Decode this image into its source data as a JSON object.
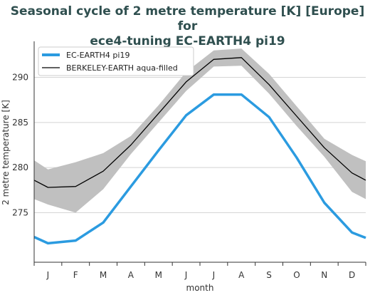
{
  "chart_data": {
    "type": "line",
    "title_lines": [
      "Seasonal cycle of 2 metre temperature [K] [Europe] for",
      "ece4-tuning EC-EARTH4 pi19"
    ],
    "xlabel": "month",
    "ylabel": "2 metre temperature [K]",
    "categories": [
      "J",
      "F",
      "M",
      "A",
      "M",
      "J",
      "J",
      "A",
      "S",
      "O",
      "N",
      "D"
    ],
    "ylim": [
      269.5,
      294.0
    ],
    "yticks": [
      275,
      280,
      285,
      290
    ],
    "grid": "horizontal",
    "legend_position": "top-left",
    "series": [
      {
        "name": "EC-EARTH4 pi19",
        "color": "#2b9be0",
        "x": [
          0.5,
          1,
          2,
          3,
          4,
          5,
          6,
          7,
          8,
          9,
          10,
          11,
          12,
          12.5
        ],
        "values": [
          272.3,
          271.6,
          271.9,
          273.9,
          277.9,
          281.9,
          285.8,
          288.1,
          288.1,
          285.6,
          281.1,
          276.1,
          272.8,
          272.2
        ]
      },
      {
        "name": "BERKELEY-EARTH aqua-filled",
        "color": "#000000",
        "x": [
          0.5,
          1,
          2,
          3,
          4,
          5,
          6,
          7,
          8,
          9,
          10,
          11,
          12,
          12.5
        ],
        "values": [
          278.6,
          277.8,
          277.9,
          279.6,
          282.5,
          286.0,
          289.5,
          292.0,
          292.2,
          289.2,
          285.7,
          282.2,
          279.4,
          278.6
        ],
        "band_upper": [
          280.8,
          279.8,
          280.6,
          281.6,
          283.5,
          286.9,
          290.6,
          293.0,
          293.2,
          290.4,
          286.8,
          283.2,
          281.4,
          280.7
        ],
        "band_lower": [
          276.5,
          275.9,
          275.0,
          277.6,
          281.5,
          285.0,
          288.5,
          291.2,
          291.3,
          288.2,
          284.6,
          281.2,
          277.3,
          276.5
        ],
        "band_color": "#c0c0c0"
      }
    ]
  }
}
